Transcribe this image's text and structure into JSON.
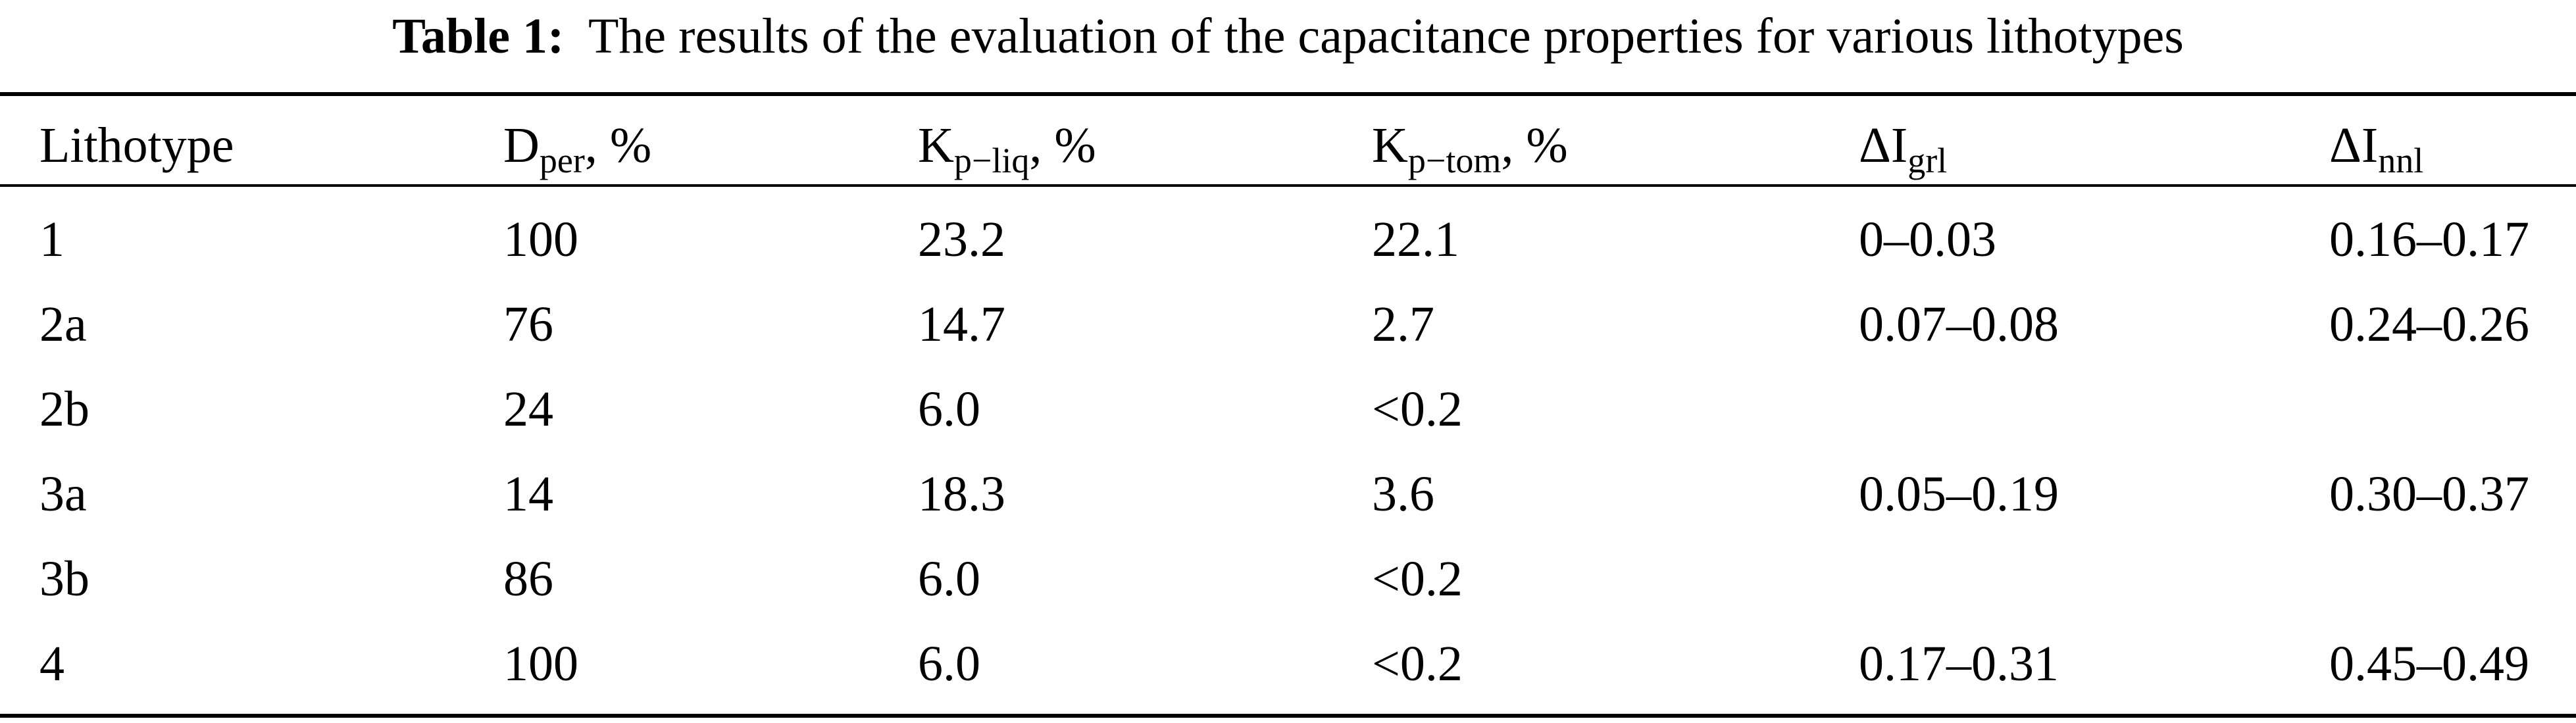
{
  "caption": {
    "label": "Table 1:",
    "text": "The results of the evaluation of the capacitance properties for various lithotypes"
  },
  "table": {
    "headers": [
      {
        "main": "Lithotype",
        "sub": "",
        "suffix": ""
      },
      {
        "main": "D",
        "sub": "per",
        "suffix": ", %"
      },
      {
        "main": "K",
        "sub": "p−liq",
        "suffix": ", %"
      },
      {
        "main": "K",
        "sub": "p−tom",
        "suffix": ", %"
      },
      {
        "main": "ΔI",
        "sub": "grl",
        "suffix": ""
      },
      {
        "main": "ΔI",
        "sub": "nnl",
        "suffix": ""
      }
    ],
    "rows": [
      [
        "1",
        "100",
        "23.2",
        "22.1",
        "0–0.03",
        "0.16–0.17"
      ],
      [
        "2a",
        "76",
        "14.7",
        "2.7",
        "0.07–0.08",
        "0.24–0.26"
      ],
      [
        "2b",
        "24",
        "6.0",
        "<0.2",
        "",
        ""
      ],
      [
        "3a",
        "14",
        "18.3",
        "3.6",
        "0.05–0.19",
        "0.30–0.37"
      ],
      [
        "3b",
        "86",
        "6.0",
        "<0.2",
        "",
        ""
      ],
      [
        "4",
        "100",
        "6.0",
        "<0.2",
        "0.17–0.31",
        "0.45–0.49"
      ]
    ]
  }
}
